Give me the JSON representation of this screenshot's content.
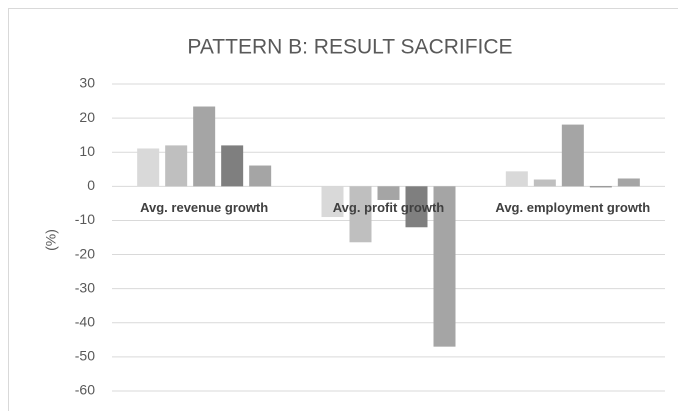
{
  "chart_data": {
    "type": "bar",
    "title": "PATTERN B: RESULT SACRIFICE",
    "ylabel": "(%)",
    "categories": [
      "Avg. revenue growth",
      "Avg. profit growth",
      "Avg. employment growth"
    ],
    "series": [
      {
        "color": "#d9d9d9",
        "values": [
          11.1,
          -9,
          4.4
        ]
      },
      {
        "color": "#bfbfbf",
        "values": [
          12,
          -16.4,
          2
        ]
      },
      {
        "color": "#a5a5a5",
        "values": [
          23.4,
          -4,
          18.1
        ]
      },
      {
        "color": "#7f7f7f",
        "values": [
          12,
          -12,
          -0.3
        ]
      },
      {
        "color": "#a5a5a5",
        "values": [
          6.1,
          -47,
          2.3
        ]
      }
    ],
    "ylim": [
      -60,
      30
    ],
    "yticks": [
      -60,
      -50,
      -40,
      -30,
      -20,
      -10,
      0,
      10,
      20,
      30
    ],
    "grid": true
  }
}
